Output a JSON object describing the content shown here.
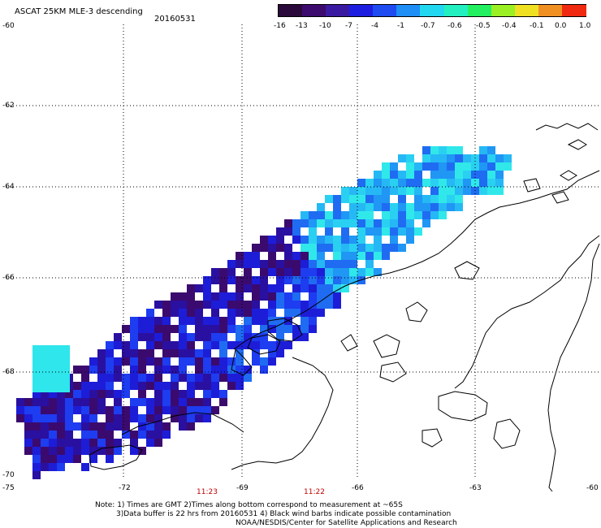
{
  "header": {
    "title": "ASCAT 25KM MLE-3 descending",
    "date": "20160531"
  },
  "colorbar": {
    "ticks": [
      "-16",
      "-13",
      "-10",
      "-7",
      "-4",
      "-1",
      "-0.7",
      "-0.6",
      "-0.5",
      "-0.4",
      "-0.1",
      "0.0",
      "1.0"
    ],
    "colors": [
      "#2a0a3a",
      "#3d0a6e",
      "#3a1aa0",
      "#1e1ee0",
      "#1e4cf0",
      "#1f8ef5",
      "#22d8f0",
      "#22f0c0",
      "#22f060",
      "#9af022",
      "#f0e022",
      "#f09022",
      "#f02a10"
    ]
  },
  "axes": {
    "lat_labels": [
      "-60",
      "-62",
      "-64",
      "-66",
      "-68",
      "-70"
    ],
    "lon_labels": [
      "-75",
      "-72",
      "-69",
      "-66",
      "-63",
      "-60"
    ]
  },
  "times": [
    "11:23",
    "11:22"
  ],
  "notes": {
    "line1": "Note: 1) Times are GMT 2)Times along bottom correspond to measurement at ~65S",
    "line2": "3)Data buffer is 22 hrs from 20160531 4) Black wind barbs indicate possible contamination",
    "line3": "NOAA/NESDIS/Center for Satellite Applications and Research"
  }
}
